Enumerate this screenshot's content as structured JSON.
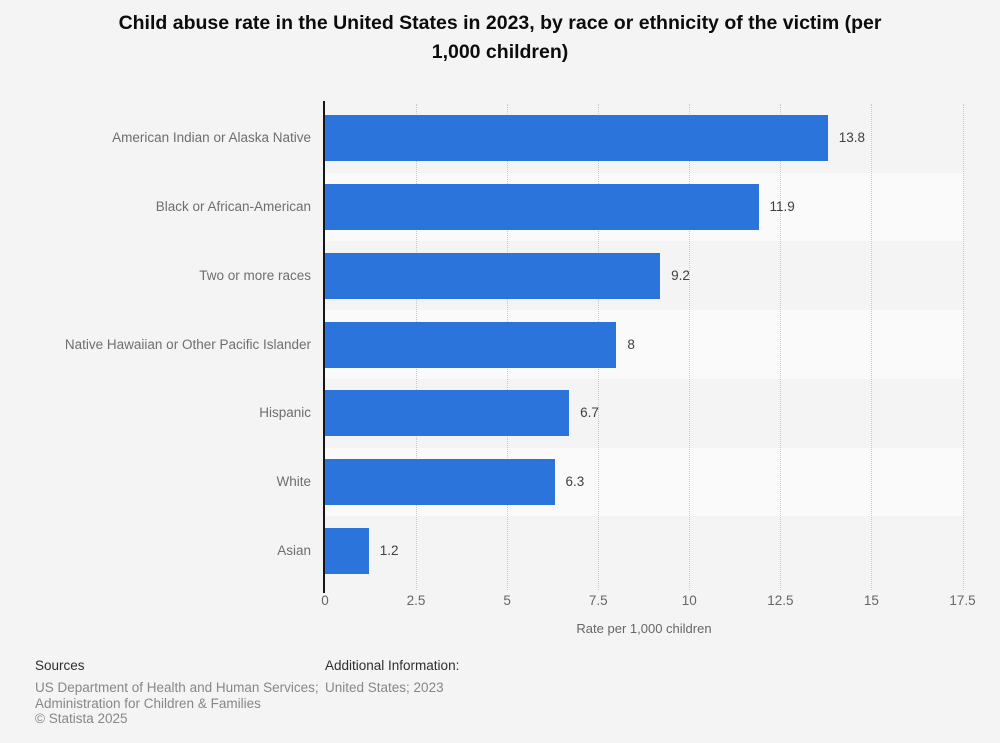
{
  "title": "Child abuse rate in the United States in 2023, by race or ethnicity of the victim (per 1,000 children)",
  "title_line1": "Child abuse rate in the United States in 2023, by race or ethnicity of the victim (per",
  "title_line2": "1,000 children)",
  "chart_data": {
    "type": "bar",
    "orientation": "horizontal",
    "title": "Child abuse rate in the United States in 2023, by race or ethnicity of the victim (per 1,000 children)",
    "categories": [
      "American Indian or Alaska Native",
      "Black or African-American",
      "Two or more races",
      "Native Hawaiian or Other Pacific Islander",
      "Hispanic",
      "White",
      "Asian"
    ],
    "values": [
      13.8,
      11.9,
      9.2,
      8,
      6.7,
      6.3,
      1.2
    ],
    "value_labels": [
      "13.8",
      "11.9",
      "9.2",
      "8",
      "6.7",
      "6.3",
      "1.2"
    ],
    "xlabel": "Rate per 1,000 children",
    "ylabel": "",
    "xlim": [
      0,
      17.5
    ],
    "xticks": [
      0,
      2.5,
      5,
      7.5,
      10,
      12.5,
      15,
      17.5
    ],
    "xtick_labels": [
      "0",
      "2.5",
      "5",
      "7.5",
      "10",
      "12.5",
      "15",
      "17.5"
    ],
    "grid": "vertical-dotted",
    "legend": "none",
    "bar_color": "#2a74db",
    "stripe_colors": [
      "#f4f4f4",
      "#fafafa"
    ],
    "background_color": "#f4f4f4"
  },
  "footer": {
    "sources_heading": "Sources",
    "sources_lines": [
      "US Department of Health and Human Services;",
      "Administration for Children & Families",
      "© Statista 2025"
    ],
    "additional_heading": "Additional Information:",
    "additional_lines": [
      "United States; 2023"
    ]
  }
}
